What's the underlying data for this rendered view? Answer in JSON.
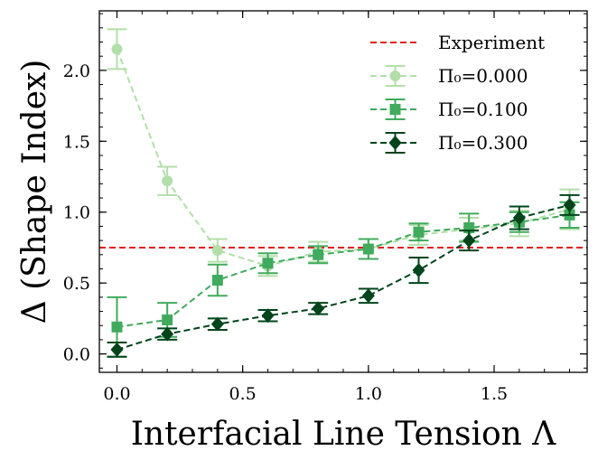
{
  "chart_data": {
    "type": "line",
    "xlabel": "Interfacial Line Tension Λ",
    "ylabel": "Δ (Shape Index)",
    "xlim": [
      -0.07,
      1.87
    ],
    "ylim": [
      -0.13,
      2.42
    ],
    "xticks": [
      {
        "value": 0.0,
        "label": "0.0"
      },
      {
        "value": 0.5,
        "label": "0.5"
      },
      {
        "value": 1.0,
        "label": "1.0"
      },
      {
        "value": 1.5,
        "label": "1.5"
      }
    ],
    "yticks": [
      {
        "value": 0.0,
        "label": "0.0"
      },
      {
        "value": 0.5,
        "label": "0.5"
      },
      {
        "value": 1.0,
        "label": "1.0"
      },
      {
        "value": 1.5,
        "label": "1.5"
      },
      {
        "value": 2.0,
        "label": "2.0"
      }
    ],
    "reference_line": {
      "name": "Experiment",
      "value": 0.75,
      "color": "#e41a1c"
    },
    "series": [
      {
        "name": "Π₀=0.000",
        "color": "#b2dfa9",
        "marker": "circle",
        "x": [
          0.0,
          0.2,
          0.4,
          0.6,
          0.8,
          1.0,
          1.2,
          1.4,
          1.6,
          1.8
        ],
        "y": [
          2.15,
          1.22,
          0.73,
          0.62,
          0.72,
          0.74,
          0.84,
          0.88,
          0.92,
          1.02
        ],
        "err": [
          0.14,
          0.1,
          0.08,
          0.07,
          0.07,
          0.07,
          0.07,
          0.08,
          0.09,
          0.14
        ]
      },
      {
        "name": "Π₀=0.100",
        "color": "#41ab5d",
        "marker": "square",
        "x": [
          0.0,
          0.2,
          0.4,
          0.6,
          0.8,
          1.0,
          1.2,
          1.4,
          1.6,
          1.8
        ],
        "y": [
          0.19,
          0.24,
          0.52,
          0.64,
          0.7,
          0.74,
          0.86,
          0.89,
          0.93,
          0.98
        ],
        "err": [
          0.21,
          0.12,
          0.11,
          0.07,
          0.06,
          0.07,
          0.06,
          0.1,
          0.07,
          0.09
        ]
      },
      {
        "name": "Π₀=0.300",
        "color": "#00441b",
        "marker": "diamond",
        "x": [
          0.0,
          0.2,
          0.4,
          0.6,
          0.8,
          1.0,
          1.2,
          1.4,
          1.6,
          1.8
        ],
        "y": [
          0.03,
          0.14,
          0.21,
          0.27,
          0.32,
          0.41,
          0.59,
          0.8,
          0.96,
          1.05
        ],
        "err": [
          0.05,
          0.04,
          0.04,
          0.04,
          0.04,
          0.05,
          0.09,
          0.07,
          0.08,
          0.07
        ]
      }
    ]
  }
}
